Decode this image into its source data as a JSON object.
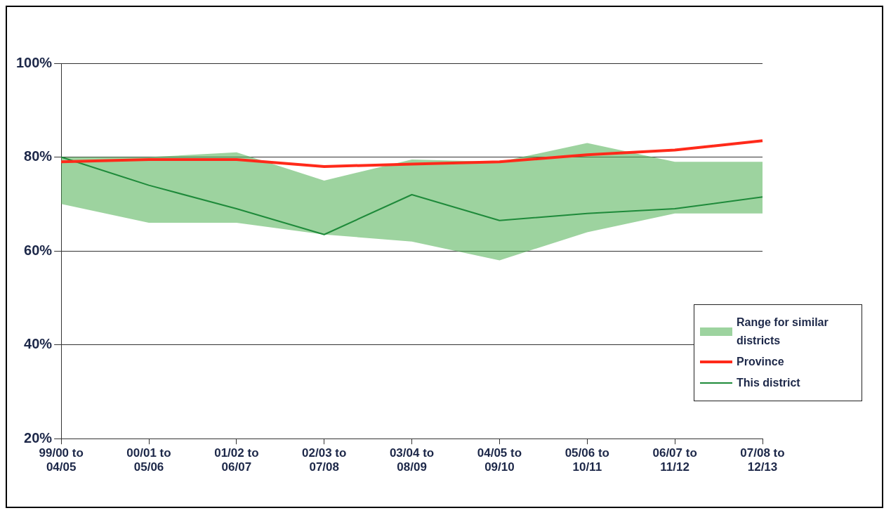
{
  "chart_data": {
    "type": "line",
    "categories": [
      "99/00 to 04/05",
      "00/01 to 05/06",
      "01/02 to 06/07",
      "02/03 to 07/08",
      "03/04 to 08/09",
      "04/05 to 09/10",
      "05/06 to 10/11",
      "06/07 to 11/12",
      "07/08 to 12/13"
    ],
    "series": [
      {
        "name": "Range for similar districts",
        "type": "area",
        "color": "#4caf50",
        "values": [
          null,
          null,
          null,
          null,
          null,
          null,
          null,
          null,
          null
        ],
        "lower": [
          70,
          66,
          66,
          63.5,
          62,
          58,
          64,
          68,
          68
        ],
        "upper": [
          80,
          80,
          81,
          75,
          79.5,
          79,
          83,
          79,
          79
        ]
      },
      {
        "name": "Province",
        "type": "line",
        "color": "#ff2a1a",
        "values": [
          79,
          79.5,
          79.5,
          78,
          78.5,
          79,
          80.5,
          81.5,
          83.5
        ]
      },
      {
        "name": "This district",
        "type": "line",
        "color": "#1e8a3a",
        "values": [
          80,
          74,
          69,
          63.5,
          72,
          66.5,
          68,
          69,
          71.5
        ]
      }
    ],
    "ylim": [
      20,
      100
    ],
    "yticks": [
      {
        "value": 20,
        "label": "20%"
      },
      {
        "value": 40,
        "label": "40%"
      },
      {
        "value": 60,
        "label": "60%"
      },
      {
        "value": 80,
        "label": "80%"
      },
      {
        "value": 100,
        "label": "100%"
      }
    ],
    "grid": "y",
    "legend": "bottom right",
    "marker": "none",
    "line_style": "solid"
  }
}
